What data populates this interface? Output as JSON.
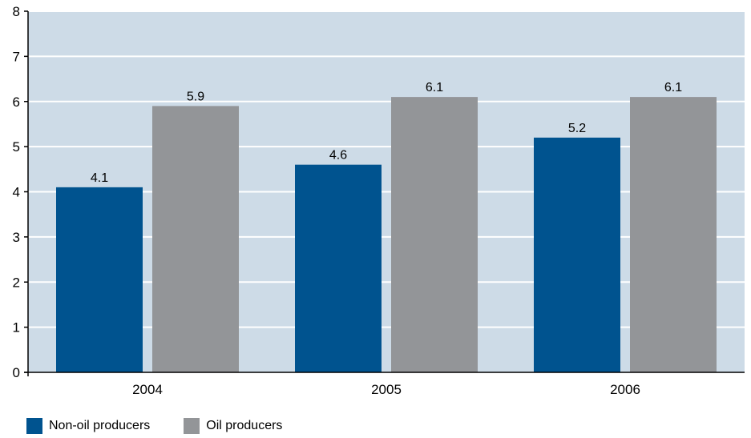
{
  "chart_data": {
    "type": "bar",
    "categories": [
      "2004",
      "2005",
      "2006"
    ],
    "series": [
      {
        "name": "Non-oil producers",
        "values": [
          4.1,
          4.6,
          5.2
        ],
        "color": "#00538f"
      },
      {
        "name": "Oil producers",
        "values": [
          5.9,
          6.1,
          6.1
        ],
        "color": "#939598"
      }
    ],
    "ylim": [
      0,
      8
    ],
    "yticks": [
      "0",
      "1",
      "2",
      "3",
      "4",
      "5",
      "6",
      "7",
      "8"
    ],
    "data_labels": [
      [
        "4.1",
        "4.6",
        "5.2"
      ],
      [
        "5.9",
        "6.1",
        "6.1"
      ]
    ],
    "grid": true,
    "legend_position": "bottom-left",
    "plot_background": "#cddbe7",
    "gridline_color": "#ffffff"
  }
}
